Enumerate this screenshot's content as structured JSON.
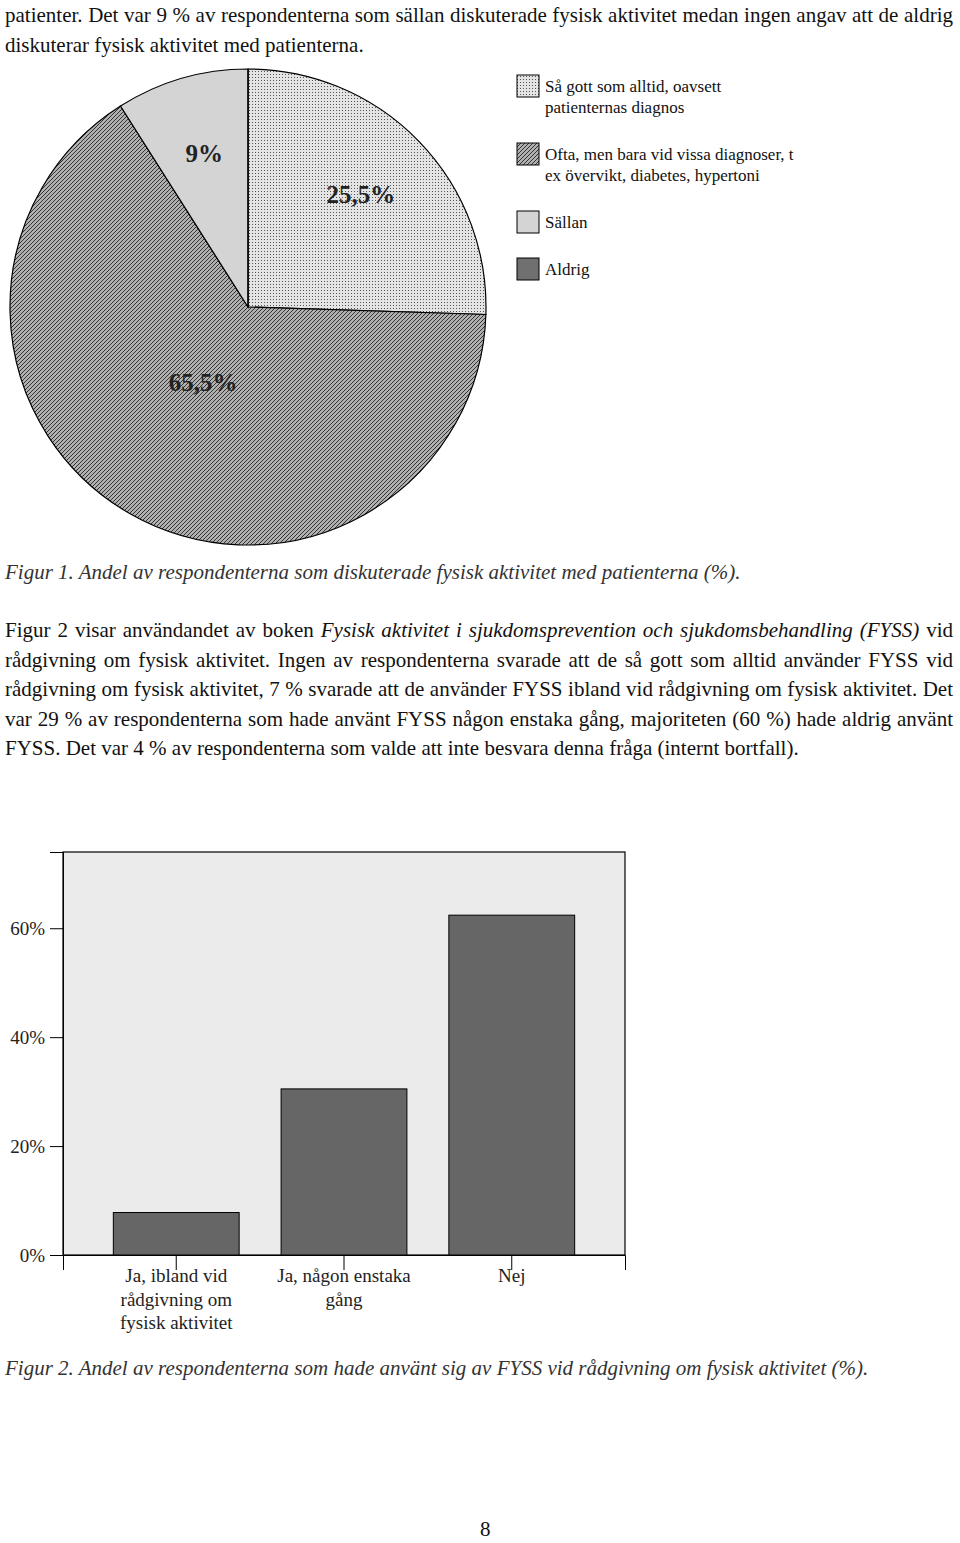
{
  "document": {
    "intro_text": "patienter. Det var 9 % av respondenterna som sällan diskuterade fysisk aktivitet medan ingen angav att de aldrig diskuterar fysisk aktivitet med patienterna.",
    "paragraph": [
      {
        "text": "Figur 2 visar användandet av boken ",
        "style": "normal"
      },
      {
        "text": "Fysisk aktivitet i sjukdomsprevention och sjukdomsbehandling (FYSS)",
        "style": "italic"
      },
      {
        "text": " vid rådgivning om fysisk aktivitet. Ingen av respondenterna svarade att de så gott som alltid använder FYSS vid rådgivning om fysisk aktivitet, 7 % svarade att de använder FYSS ibland vid rådgivning om fysisk aktivitet. Det var 29 % av respondenterna som hade använt FYSS någon enstaka gång, majoriteten (60 %) hade aldrig använt FYSS. Det var 4 % av respondenterna som valde att inte besvara denna fråga (internt bortfall).",
        "style": "normal"
      }
    ],
    "captions": [
      "Figur 1. Andel av respondenterna som diskuterade fysisk aktivitet med patienterna (%).",
      "Figur 2. Andel av respondenterna som hade använt sig av FYSS vid rådgivning om fysisk aktivitet (%)."
    ],
    "page_number": "8"
  },
  "chart_data": [
    {
      "type": "pie",
      "categories": [
        "Så gott som alltid, oavsett patienternas diagnos",
        "Ofta, men bara vid vissa diagnoser, t ex övervikt, diabetes, hypertoni",
        "Sällan",
        "Aldrig"
      ],
      "values": [
        25.5,
        65.5,
        9,
        0
      ],
      "value_labels": [
        "25,5%",
        "65,5%",
        "9%",
        null
      ],
      "colors": [
        "#e4e4e4",
        "#b0b0b0",
        "#d4d4d4",
        "#707070"
      ],
      "data_labels": true,
      "legend": "upper right"
    },
    {
      "type": "bar",
      "categories": [
        "Ja, ibland vid rådgivning om fysisk aktivitet",
        "Ja, någon enstaka gång",
        "Nej"
      ],
      "values": [
        7.8,
        30.5,
        62.4
      ],
      "color": "#666666",
      "ylim": [
        0,
        74
      ],
      "yticks": [
        {
          "value": 0,
          "label": "0%"
        },
        {
          "value": 20,
          "label": "20%"
        },
        {
          "value": 40,
          "label": "40%"
        },
        {
          "value": 60,
          "label": "60%"
        }
      ]
    }
  ]
}
